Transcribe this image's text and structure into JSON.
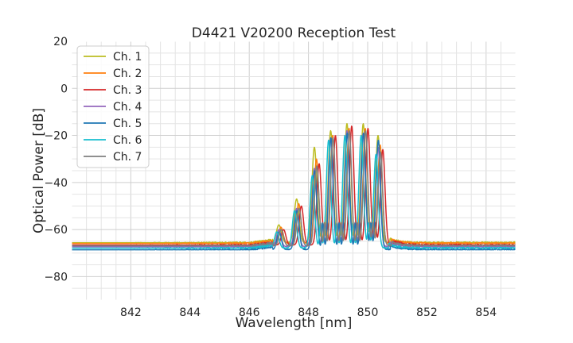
{
  "chart_data": {
    "type": "line",
    "title": "D4421 V20200 Reception Test",
    "xlabel": "Wavelength [nm]",
    "ylabel": "Optical Power [dB]",
    "xlim": [
      840,
      855
    ],
    "ylim": [
      -90,
      20
    ],
    "xticks": [
      842,
      844,
      846,
      848,
      850,
      852,
      854
    ],
    "yticks": [
      20,
      0,
      -20,
      -40,
      -60,
      -80
    ],
    "grid": true,
    "legend_position": "top-left",
    "series": [
      {
        "name": "Ch. 1",
        "color": "#bcbd22",
        "baseline": -65.6,
        "shift": 0.0,
        "scale": 1.1,
        "peaks": [
          [
            847.0,
            -58
          ],
          [
            847.6,
            -47
          ],
          [
            848.2,
            -25
          ],
          [
            848.75,
            -18
          ],
          [
            849.3,
            -15
          ],
          [
            849.85,
            -15
          ],
          [
            850.35,
            -20
          ]
        ]
      },
      {
        "name": "Ch. 2",
        "color": "#ff7f0e",
        "baseline": -65.9,
        "shift": 0.04,
        "scale": 1.0,
        "peaks": [
          [
            847.05,
            -59
          ],
          [
            847.65,
            -49
          ],
          [
            848.25,
            -30
          ],
          [
            848.8,
            -20
          ],
          [
            849.35,
            -17
          ],
          [
            849.9,
            -17
          ],
          [
            850.4,
            -24
          ]
        ]
      },
      {
        "name": "Ch. 3",
        "color": "#d62728",
        "baseline": -66.6,
        "shift": 0.12,
        "scale": 1.0,
        "peaks": [
          [
            847.1,
            -60
          ],
          [
            847.7,
            -50
          ],
          [
            848.3,
            -32
          ],
          [
            848.85,
            -20
          ],
          [
            849.4,
            -16
          ],
          [
            849.95,
            -17
          ],
          [
            850.45,
            -26
          ]
        ]
      },
      {
        "name": "Ch. 4",
        "color": "#9467bd",
        "baseline": -67.3,
        "shift": 0.0,
        "scale": 1.0,
        "peaks": [
          [
            847.0,
            -60
          ],
          [
            847.6,
            -51
          ],
          [
            848.2,
            -34
          ],
          [
            848.75,
            -21
          ],
          [
            849.3,
            -18
          ],
          [
            849.85,
            -19
          ],
          [
            850.35,
            -25
          ]
        ]
      },
      {
        "name": "Ch. 5",
        "color": "#1f77b4",
        "baseline": -68.6,
        "shift": 0.02,
        "scale": 1.0,
        "peaks": [
          [
            847.0,
            -61
          ],
          [
            847.6,
            -52
          ],
          [
            848.2,
            -35
          ],
          [
            848.75,
            -21
          ],
          [
            849.3,
            -19
          ],
          [
            849.85,
            -19
          ],
          [
            850.35,
            -22
          ]
        ]
      },
      {
        "name": "Ch. 6",
        "color": "#17becf",
        "baseline": -67.9,
        "shift": -0.04,
        "scale": 1.0,
        "peaks": [
          [
            846.95,
            -61
          ],
          [
            847.55,
            -52
          ],
          [
            848.15,
            -37
          ],
          [
            848.7,
            -22
          ],
          [
            849.25,
            -20
          ],
          [
            849.8,
            -20
          ],
          [
            850.3,
            -28
          ]
        ]
      },
      {
        "name": "Ch. 7",
        "color": "#7f7f7f",
        "baseline": -66.9,
        "shift": 0.06,
        "scale": 1.0,
        "peaks": [
          [
            847.05,
            -60
          ],
          [
            847.65,
            -51
          ],
          [
            848.25,
            -33
          ],
          [
            848.8,
            -21
          ],
          [
            849.35,
            -18
          ],
          [
            849.9,
            -18
          ],
          [
            850.4,
            -27
          ]
        ]
      }
    ]
  }
}
